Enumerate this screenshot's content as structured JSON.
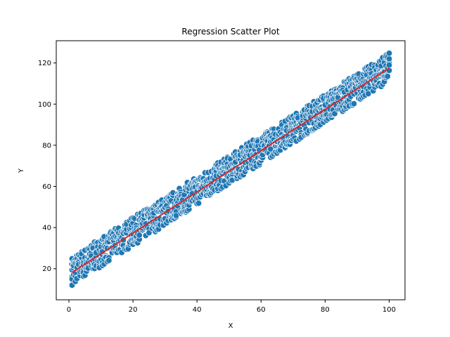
{
  "chart_data": {
    "type": "scatter",
    "title": "Regression Scatter Plot",
    "xlabel": "X",
    "ylabel": "Y",
    "xlim": [
      -3.95,
      104.95
    ],
    "ylim": [
      4.9,
      130.8
    ],
    "xticks": [
      0,
      20,
      40,
      60,
      80,
      100
    ],
    "yticks": [
      20,
      40,
      60,
      80,
      100,
      120
    ],
    "grid": false,
    "legend": "none",
    "scatter": {
      "x_range": [
        1,
        100
      ],
      "y_band": {
        "slope": 1,
        "intercept": 18,
        "lower_offset": -7,
        "upper_offset": 7
      },
      "marker_color": "#1f77b4",
      "marker_edge_color": "#ffffff"
    },
    "regression_line": {
      "x": [
        1,
        100
      ],
      "y": [
        18.2,
        117.5
      ],
      "color": "#d62728"
    }
  }
}
